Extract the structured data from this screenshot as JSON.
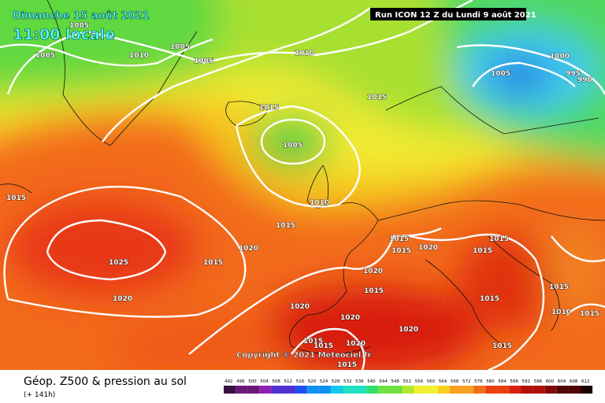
{
  "header": {
    "date": "Dimanche 15 août 2021",
    "time": "11:00 locale",
    "run": "Run ICON 12 Z du Lundi 9 août 2021"
  },
  "isobar_labels": [
    1005,
    1005,
    1010,
    1005,
    1005,
    1010,
    1000,
    1005,
    995,
    990,
    1015,
    1015,
    1005,
    1015,
    1010,
    1015,
    1025,
    1015,
    1020,
    1015,
    1015,
    1020,
    1015,
    1015,
    1020,
    1015,
    1020,
    1020,
    1020,
    1015,
    1015,
    1010,
    1015,
    1020,
    1015,
    1015,
    1015,
    1020,
    1015
  ],
  "copyright": "Copyright © 2021 Meteociel.fr",
  "footer": {
    "title": "Géop. Z500 & pression au sol",
    "lead": "(+ 141h)"
  },
  "scale": [
    492,
    496,
    500,
    504,
    508,
    512,
    516,
    520,
    524,
    528,
    532,
    536,
    540,
    544,
    548,
    552,
    556,
    560,
    564,
    568,
    572,
    576,
    580,
    584,
    588,
    592,
    596,
    600,
    604,
    608,
    612
  ]
}
